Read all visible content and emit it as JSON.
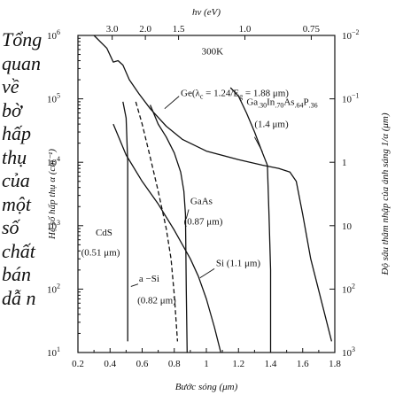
{
  "caption_lines": [
    "Tổng",
    "quan",
    "về",
    "bờ",
    "hấp",
    "thụ",
    "của",
    "một",
    "số",
    "chất",
    "bán",
    "dẫ n"
  ],
  "chart_data": {
    "type": "line",
    "xlabel": "Bước sóng (μm)",
    "ylabel": "Hệ số hấp thụ  α (cm⁻¹)",
    "ylabel_right": "Độ sâu thâm nhập của ánh sáng   1/α (μm)",
    "top_axis_label": "hν (eV)",
    "temperature_label": "300K",
    "xlim": [
      0.2,
      1.8
    ],
    "ylim": [
      10,
      1000000
    ],
    "yscale": "log",
    "x_ticks": [
      0.2,
      0.4,
      0.6,
      0.8,
      1.0,
      1.2,
      1.4,
      1.6,
      1.8
    ],
    "x_tick_labels": [
      "0.2",
      "0.4",
      "0.6",
      "0.8",
      "1",
      "1.2",
      "1.4",
      "1.6",
      "1.8"
    ],
    "y_ticks": [
      10,
      100,
      1000,
      10000,
      100000,
      1000000
    ],
    "y_tick_labels": [
      {
        "base": "10",
        "exp": "1"
      },
      {
        "base": "10",
        "exp": "2"
      },
      {
        "base": "10",
        "exp": "3"
      },
      {
        "base": "10",
        "exp": "4"
      },
      {
        "base": "10",
        "exp": "5"
      },
      {
        "base": "10",
        "exp": "6"
      }
    ],
    "right_ticks": [
      {
        "alpha": 1000000,
        "base": "10",
        "exp": "−2"
      },
      {
        "alpha": 100000,
        "base": "10",
        "exp": "−1"
      },
      {
        "alpha": 10000,
        "base": "1",
        "exp": ""
      },
      {
        "alpha": 1000,
        "base": "10",
        "exp": ""
      },
      {
        "alpha": 100,
        "base": "10",
        "exp": "2"
      },
      {
        "alpha": 10,
        "base": "10",
        "exp": "3"
      }
    ],
    "top_ticks": [
      {
        "ev": 3.0,
        "label": "3.0"
      },
      {
        "ev": 2.0,
        "label": "2.0"
      },
      {
        "ev": 1.5,
        "label": "1.5"
      },
      {
        "ev": 1.0,
        "label": "1.0"
      },
      {
        "ev": 0.75,
        "label": "0.75"
      }
    ],
    "grid": false,
    "series": [
      {
        "name": "Ge",
        "label_parts": [
          "Ge(λ",
          "c",
          " = 1.24/E",
          "g",
          " = 1.88 μm)"
        ],
        "dash": false,
        "points": [
          [
            0.3,
            1000000
          ],
          [
            0.38,
            630000
          ],
          [
            0.42,
            380000
          ],
          [
            0.45,
            400000
          ],
          [
            0.48,
            340000
          ],
          [
            0.52,
            200000
          ],
          [
            0.58,
            120000
          ],
          [
            0.65,
            70000
          ],
          [
            0.75,
            37000
          ],
          [
            0.85,
            23000
          ],
          [
            1.0,
            15000
          ],
          [
            1.2,
            11000
          ],
          [
            1.35,
            9000
          ],
          [
            1.45,
            8000
          ],
          [
            1.52,
            7000
          ],
          [
            1.56,
            5000
          ],
          [
            1.6,
            1500
          ],
          [
            1.65,
            300
          ],
          [
            1.72,
            60
          ],
          [
            1.78,
            15
          ]
        ]
      },
      {
        "name": "Ga.30In.70As.64P.36",
        "label_parts": [
          "Ga",
          ".30",
          "In",
          ".70",
          "As",
          ".64",
          "P",
          ".36"
        ],
        "sublabel": "(1.4 μm)",
        "dash": false,
        "points": [
          [
            1.15,
            150000
          ],
          [
            1.2,
            110000
          ],
          [
            1.25,
            60000
          ],
          [
            1.3,
            30000
          ],
          [
            1.35,
            14000
          ],
          [
            1.38,
            9000
          ],
          [
            1.39,
            1500
          ],
          [
            1.4,
            200
          ],
          [
            1.4,
            10
          ]
        ]
      },
      {
        "name": "GaAs",
        "label_parts": [
          "GaAs"
        ],
        "sublabel": "(0.87 μm)",
        "dash": false,
        "points": [
          [
            0.65,
            80000
          ],
          [
            0.7,
            40000
          ],
          [
            0.75,
            25000
          ],
          [
            0.8,
            14000
          ],
          [
            0.84,
            7000
          ],
          [
            0.86,
            3500
          ],
          [
            0.87,
            1500
          ],
          [
            0.875,
            100
          ],
          [
            0.88,
            10
          ]
        ]
      },
      {
        "name": "Si",
        "label_parts": [
          "Si (1.1 μm)"
        ],
        "dash": false,
        "points": [
          [
            0.42,
            40000
          ],
          [
            0.5,
            13000
          ],
          [
            0.6,
            5000
          ],
          [
            0.7,
            2200
          ],
          [
            0.8,
            850
          ],
          [
            0.9,
            300
          ],
          [
            0.95,
            160
          ],
          [
            1.0,
            70
          ],
          [
            1.05,
            25
          ],
          [
            1.09,
            10
          ]
        ]
      },
      {
        "name": "CdS",
        "label_parts": [
          "CdS"
        ],
        "sublabel": "(0.51 μm)",
        "dash": false,
        "points": [
          [
            0.48,
            90000
          ],
          [
            0.5,
            50000
          ],
          [
            0.51,
            10000
          ],
          [
            0.51,
            1000
          ],
          [
            0.51,
            15
          ]
        ]
      },
      {
        "name": "a-Si",
        "label_parts": [
          "a −Si"
        ],
        "sublabel": "(0.82 μm)",
        "dash": true,
        "points": [
          [
            0.56,
            90000
          ],
          [
            0.6,
            40000
          ],
          [
            0.65,
            12000
          ],
          [
            0.7,
            3500
          ],
          [
            0.75,
            900
          ],
          [
            0.78,
            300
          ],
          [
            0.8,
            80
          ],
          [
            0.82,
            15
          ]
        ]
      }
    ]
  }
}
